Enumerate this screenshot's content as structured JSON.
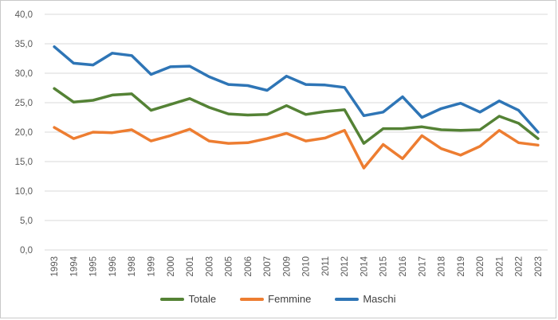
{
  "chart": {
    "background": "#ffffff",
    "frame_border_color": "#c9c9c9",
    "gridline_color": "#d9d9d9",
    "axis_label_color": "#595959",
    "legend_text_color": "#404040"
  },
  "chart_data": {
    "type": "line",
    "title": "",
    "xlabel": "",
    "ylabel": "",
    "ylim": [
      0,
      40
    ],
    "y_tick_step": 5,
    "y_tick_labels": [
      "0,0",
      "5,0",
      "10,0",
      "15,0",
      "20,0",
      "25,0",
      "30,0",
      "35,0",
      "40,0"
    ],
    "grid": "horizontal",
    "legend_position": "bottom",
    "x_tick_rotation": -90,
    "categories": [
      "1993",
      "1994",
      "1995",
      "1996",
      "1998",
      "1999",
      "2000",
      "2001",
      "2003",
      "2005",
      "2006",
      "2007",
      "2009",
      "2010",
      "2011",
      "2012",
      "2014",
      "2015",
      "2016",
      "2017",
      "2018",
      "2019",
      "2020",
      "2021",
      "2022",
      "2023"
    ],
    "series": [
      {
        "name": "Totale",
        "color": "#548235",
        "values": [
          27.4,
          25.1,
          25.4,
          26.3,
          26.5,
          23.7,
          24.7,
          25.7,
          24.2,
          23.1,
          22.9,
          23.0,
          24.5,
          23.0,
          23.5,
          23.8,
          18.1,
          20.6,
          20.6,
          20.9,
          20.4,
          20.3,
          20.4,
          22.7,
          21.5,
          18.9
        ]
      },
      {
        "name": "Femmine",
        "color": "#ed7d31",
        "values": [
          20.8,
          18.9,
          20.0,
          19.9,
          20.4,
          18.5,
          19.4,
          20.5,
          18.5,
          18.1,
          18.2,
          18.9,
          19.8,
          18.5,
          19.0,
          20.3,
          13.9,
          17.9,
          15.5,
          19.4,
          17.2,
          16.1,
          17.6,
          20.3,
          18.2,
          17.8
        ]
      },
      {
        "name": "Maschi",
        "color": "#2e75b6",
        "values": [
          34.5,
          31.7,
          31.4,
          33.4,
          33.0,
          29.8,
          31.1,
          31.2,
          29.4,
          28.1,
          27.9,
          27.1,
          29.5,
          28.1,
          28.0,
          27.6,
          22.8,
          23.4,
          26.0,
          22.5,
          24.0,
          24.9,
          23.4,
          25.3,
          23.7,
          20.0
        ]
      }
    ]
  }
}
